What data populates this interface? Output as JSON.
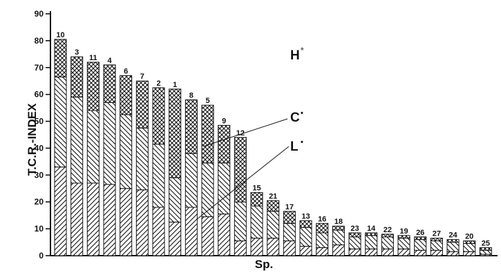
{
  "chart_data": {
    "type": "bar",
    "stacked": true,
    "xlabel": "Sp.",
    "ylabel": "T.C.R.-INDEX",
    "ylim": [
      0,
      90
    ],
    "yticks": [
      0,
      10,
      20,
      30,
      40,
      50,
      60,
      70,
      80,
      90
    ],
    "grid": false,
    "legend_placement": "inside-right",
    "categories": [
      "10",
      "3",
      "11",
      "4",
      "6",
      "7",
      "2",
      "1",
      "8",
      "5",
      "9",
      "12",
      "15",
      "21",
      "17",
      "13",
      "16",
      "18",
      "23",
      "14",
      "22",
      "19",
      "26",
      "27",
      "24",
      "20",
      "25"
    ],
    "series": [
      {
        "name": "L",
        "pattern": "hatch-forward",
        "values": [
          33,
          27,
          27,
          26.5,
          25,
          24.5,
          18,
          12.5,
          18,
          14.5,
          15.5,
          5.5,
          6.5,
          6.5,
          5.5,
          3.5,
          3,
          4,
          2.5,
          2.5,
          2.5,
          2.5,
          2,
          2,
          1.5,
          1.5,
          0.5
        ]
      },
      {
        "name": "C",
        "pattern": "hatch-backward",
        "values": [
          33.5,
          32,
          27,
          30.5,
          27.5,
          23,
          23.5,
          16.5,
          20,
          20,
          19,
          14.5,
          12,
          10,
          6.5,
          7,
          5.5,
          5.5,
          4.5,
          5,
          4.5,
          4,
          4,
          3.5,
          3.5,
          3,
          1.5
        ]
      },
      {
        "name": "H",
        "pattern": "crosshatch",
        "values": [
          14,
          15,
          18,
          14,
          14.5,
          17.5,
          21,
          33,
          20,
          21.5,
          14,
          24,
          5,
          4,
          4.5,
          2.5,
          3.5,
          1.5,
          1.5,
          1,
          1,
          1,
          1,
          1,
          1,
          1,
          1
        ]
      }
    ]
  },
  "legend": [
    {
      "label": "H",
      "mark": "°"
    },
    {
      "label": "C",
      "mark": "•"
    },
    {
      "label": "L",
      "mark": "•"
    }
  ],
  "colors": {
    "ink": "#111111",
    "background": "#ffffff"
  }
}
